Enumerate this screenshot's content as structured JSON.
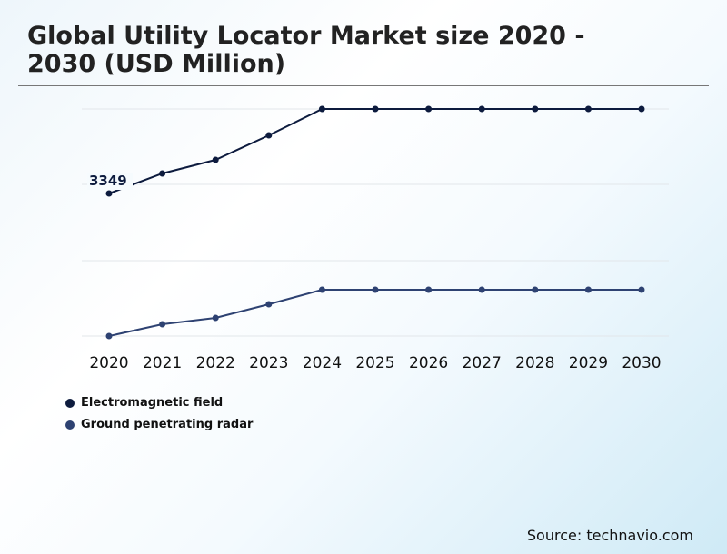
{
  "title": "Global Utility Locator Market size 2020 - 2030 (USD Million)",
  "source": "Source: technavio.com",
  "chart_data": {
    "type": "line",
    "title": "Global Utility Locator Market size 2020 - 2030 (USD Million)",
    "categories": [
      "2020",
      "2021",
      "2022",
      "2023",
      "2024",
      "2025",
      "2026",
      "2027",
      "2028",
      "2029",
      "2030"
    ],
    "series": [
      {
        "name": "Electromagnetic field",
        "color": "#0d1b3e",
        "values": [
          3349,
          3819,
          4138,
          4714,
          5333,
          5333,
          5333,
          5333,
          5333,
          5333,
          5333
        ]
      },
      {
        "name": "Ground penetrating radar",
        "color": "#2e4272",
        "values": [
          0,
          277,
          427,
          747,
          1088,
          1088,
          1088,
          1088,
          1088,
          1088,
          1088
        ]
      }
    ],
    "data_labels": [
      {
        "series": 0,
        "index": 0,
        "text": "3349"
      }
    ],
    "ylim": [
      0,
      5333
    ],
    "grid": true,
    "legend": "bottom-left"
  }
}
